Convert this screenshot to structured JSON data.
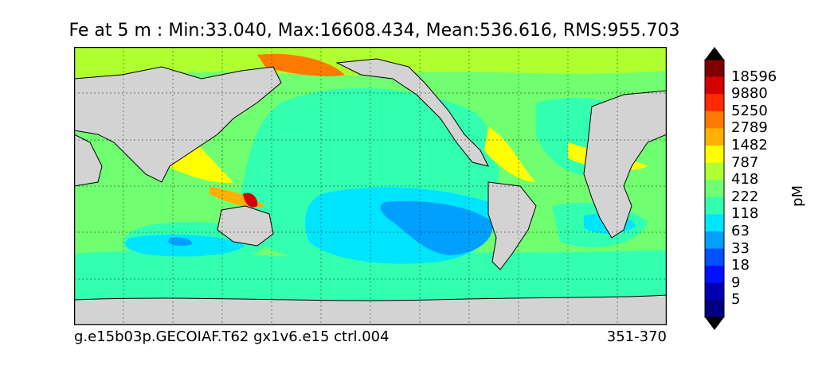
{
  "title": "Fe at 5 m : Min:33.040, Max:16608.434, Mean:536.616, RMS:955.703",
  "footer": {
    "case_name": "g.e15b03p.GECOIAF.T62 gx1v6.e15 ctrl.004",
    "years": "351-370"
  },
  "colorbar": {
    "unit": "pM",
    "labels": [
      "18596",
      "9880",
      "5250",
      "2789",
      "1482",
      "787",
      "418",
      "222",
      "118",
      "63",
      "33",
      "18",
      "9",
      "5"
    ],
    "colors_top_to_bottom": [
      "#7f0000",
      "#d40000",
      "#ff2a00",
      "#ff7a00",
      "#ffb000",
      "#ffff00",
      "#b0ff30",
      "#70ff70",
      "#33ffb0",
      "#00e5ff",
      "#00a0ff",
      "#0050ff",
      "#0010ff",
      "#0000b0",
      "#00007f"
    ]
  },
  "map": {
    "land_color": "#d3d3d3",
    "grid": "dotted"
  }
}
